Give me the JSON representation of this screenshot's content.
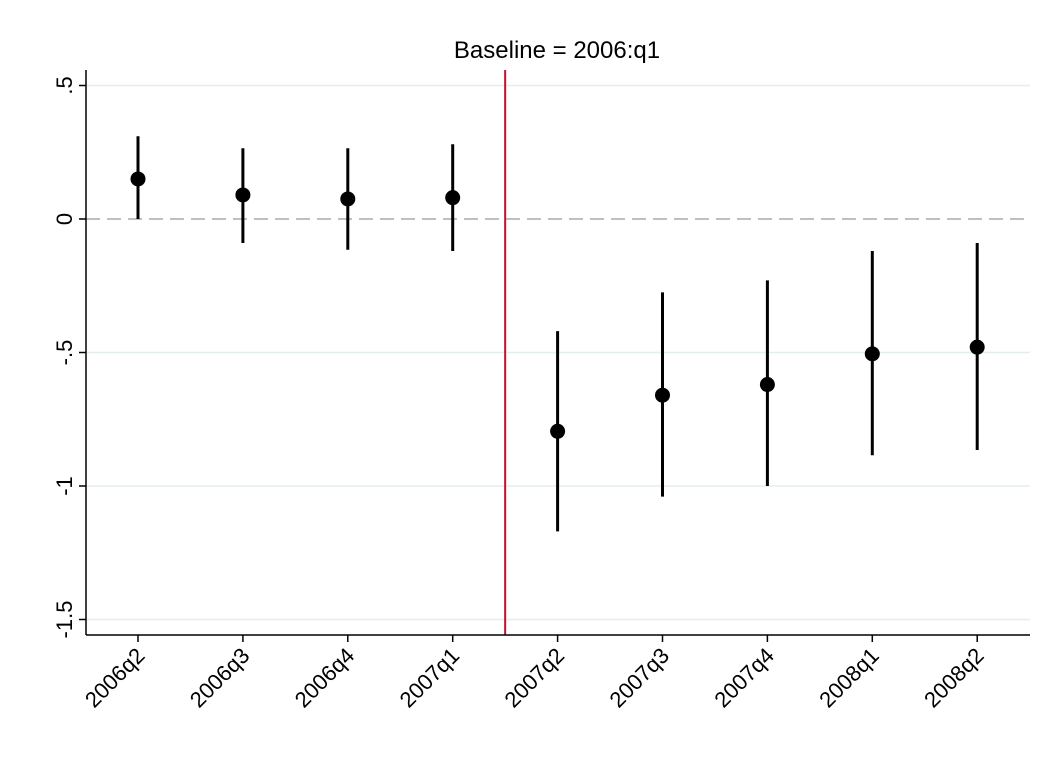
{
  "chart_data": {
    "type": "scatter",
    "title": "Baseline = 2006:q1",
    "xlabel": "",
    "ylabel": "",
    "categories": [
      "2006q2",
      "2006q3",
      "2006q4",
      "2007q1",
      "2007q2",
      "2007q3",
      "2007q4",
      "2008q1",
      "2008q2"
    ],
    "estimates": [
      0.15,
      0.09,
      0.075,
      0.08,
      -0.795,
      -0.66,
      -0.62,
      -0.505,
      -0.48
    ],
    "ci_lower": [
      0.0,
      -0.09,
      -0.115,
      -0.12,
      -1.17,
      -1.04,
      -1.0,
      -0.885,
      -0.865
    ],
    "ci_upper": [
      0.31,
      0.265,
      0.265,
      0.28,
      -0.42,
      -0.275,
      -0.23,
      -0.12,
      -0.09
    ],
    "ylim": [
      -1.55,
      0.55
    ],
    "yticks": [
      0.5,
      0,
      -0.5,
      -1,
      -1.5
    ],
    "ytick_labels": [
      ".5",
      "0",
      "-.5",
      "-1",
      "-1.5"
    ],
    "reference_line_y": 0,
    "event_line_between": [
      "2007q1",
      "2007q2"
    ],
    "grid": true,
    "colors": {
      "points": "#000000",
      "ci": "#000000",
      "event_line": "#c8102e",
      "zero_line": "#bfbfbf",
      "grid": "#e3eeee"
    }
  }
}
